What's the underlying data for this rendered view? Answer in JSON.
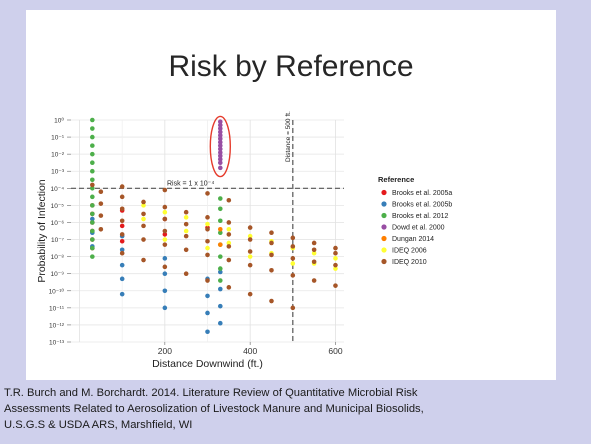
{
  "slide": {
    "title": "Risk by Reference",
    "caption_lines": [
      "T.R. Burch and M. Borchardt.  2014.  Literature Review of Quantitative Microbial Risk",
      "Assessments Related to Aerosolization of Livestock Manure and Municipal Biosolids,",
      "U.S.G.S & USDA ARS, Marshfield, WI"
    ]
  },
  "colors": {
    "frame": "#cfd0ec",
    "highlight_ellipse": "#e53b2c",
    "reference_line": "#555555"
  },
  "chart_data": {
    "type": "scatter",
    "title": "",
    "xlabel": "Distance Downwind (ft.)",
    "ylabel": "Probability of Infection",
    "xlim": [
      -20,
      620
    ],
    "ylim": [
      -13,
      0
    ],
    "y_scale": "log10",
    "x_ticks": [
      200,
      400,
      600
    ],
    "y_ticks": [
      0,
      -1,
      -2,
      -3,
      -4,
      -5,
      -6,
      -7,
      -8,
      -9,
      -10,
      -11,
      -12,
      -13
    ],
    "grid": true,
    "legend_title": "Reference",
    "legend_position": "right",
    "annotations": {
      "risk_line": {
        "label": "Risk = 1 x 10⁻⁴",
        "y": -4
      },
      "distance_line": {
        "label": "Distance = 500 ft.",
        "x": 500
      },
      "highlight": {
        "x": 330,
        "y_from": -0.2,
        "y_to": -2.9
      }
    },
    "series": [
      {
        "name": "Brooks et al. 2005a",
        "color": "#e41a1c",
        "points": [
          [
            30,
            -5
          ],
          [
            30,
            -5.5
          ],
          [
            30,
            -6
          ],
          [
            30,
            -6.5
          ],
          [
            30,
            -7
          ],
          [
            30,
            -7.5
          ],
          [
            100,
            -5.3
          ],
          [
            100,
            -6.2
          ],
          [
            100,
            -7.1
          ],
          [
            200,
            -5.8
          ],
          [
            200,
            -6.7
          ],
          [
            300,
            -6.3
          ]
        ]
      },
      {
        "name": "Brooks et al. 2005b",
        "color": "#377eb8",
        "points": [
          [
            30,
            -5.8
          ],
          [
            30,
            -6.6
          ],
          [
            30,
            -7.4
          ],
          [
            100,
            -6.8
          ],
          [
            100,
            -7.6
          ],
          [
            100,
            -8.5
          ],
          [
            100,
            -9.3
          ],
          [
            100,
            -10.2
          ],
          [
            200,
            -8.1
          ],
          [
            200,
            -9
          ],
          [
            200,
            -10
          ],
          [
            200,
            -11
          ],
          [
            300,
            -9.3
          ],
          [
            300,
            -10.3
          ],
          [
            300,
            -11.3
          ],
          [
            300,
            -12.4
          ],
          [
            330,
            -8.9
          ],
          [
            330,
            -9.9
          ],
          [
            330,
            -10.9
          ],
          [
            330,
            -11.9
          ]
        ]
      },
      {
        "name": "Brooks et al. 2012",
        "color": "#4daf4a",
        "points": [
          [
            30,
            0
          ],
          [
            30,
            -0.5
          ],
          [
            30,
            -1
          ],
          [
            30,
            -1.5
          ],
          [
            30,
            -2
          ],
          [
            30,
            -2.5
          ],
          [
            30,
            -3
          ],
          [
            30,
            -3.5
          ],
          [
            30,
            -4
          ],
          [
            30,
            -4.5
          ],
          [
            30,
            -5
          ],
          [
            30,
            -5.5
          ],
          [
            30,
            -6
          ],
          [
            30,
            -6.5
          ],
          [
            30,
            -7
          ],
          [
            30,
            -7.5
          ],
          [
            30,
            -8
          ],
          [
            330,
            -4.6
          ],
          [
            330,
            -5.2
          ],
          [
            330,
            -5.9
          ],
          [
            330,
            -6.6
          ],
          [
            330,
            -7.3
          ],
          [
            330,
            -8
          ],
          [
            330,
            -8.7
          ],
          [
            330,
            -9.4
          ]
        ]
      },
      {
        "name": "Dowd et al. 2000",
        "color": "#984ea3",
        "points": [
          [
            330,
            -0.1
          ],
          [
            330,
            -0.3
          ],
          [
            330,
            -0.5
          ],
          [
            330,
            -0.7
          ],
          [
            330,
            -0.9
          ],
          [
            330,
            -1.1
          ],
          [
            330,
            -1.3
          ],
          [
            330,
            -1.5
          ],
          [
            330,
            -1.7
          ],
          [
            330,
            -1.9
          ],
          [
            330,
            -2.1
          ],
          [
            330,
            -2.3
          ],
          [
            330,
            -2.5
          ],
          [
            330,
            -2.8
          ]
        ]
      },
      {
        "name": "Dungan 2014",
        "color": "#ff7f00",
        "points": [
          [
            330,
            -6.4
          ],
          [
            330,
            -7.3
          ]
        ]
      },
      {
        "name": "IDEQ 2006",
        "color": "#ffff33",
        "points": [
          [
            150,
            -5
          ],
          [
            200,
            -5.4
          ],
          [
            250,
            -5.7
          ],
          [
            300,
            -6.1
          ],
          [
            350,
            -6.4
          ],
          [
            400,
            -6.8
          ],
          [
            450,
            -7.1
          ],
          [
            500,
            -7.5
          ],
          [
            550,
            -7.8
          ],
          [
            600,
            -8.1
          ],
          [
            150,
            -5.8
          ],
          [
            250,
            -6.5
          ],
          [
            350,
            -7.2
          ],
          [
            450,
            -7.8
          ],
          [
            550,
            -8.4
          ],
          [
            200,
            -7
          ],
          [
            300,
            -7.5
          ],
          [
            400,
            -8
          ],
          [
            500,
            -8.4
          ],
          [
            600,
            -8.7
          ]
        ]
      },
      {
        "name": "IDEQ 2010",
        "color": "#a65628",
        "points": [
          [
            50,
            -4.2
          ],
          [
            100,
            -4.5
          ],
          [
            150,
            -4.8
          ],
          [
            200,
            -5.1
          ],
          [
            250,
            -5.4
          ],
          [
            300,
            -5.7
          ],
          [
            350,
            -6
          ],
          [
            400,
            -6.3
          ],
          [
            450,
            -6.6
          ],
          [
            500,
            -6.9
          ],
          [
            550,
            -7.2
          ],
          [
            600,
            -7.5
          ],
          [
            50,
            -4.9
          ],
          [
            100,
            -5.2
          ],
          [
            150,
            -5.5
          ],
          [
            200,
            -5.8
          ],
          [
            250,
            -6.1
          ],
          [
            300,
            -6.4
          ],
          [
            350,
            -6.7
          ],
          [
            400,
            -7
          ],
          [
            450,
            -7.2
          ],
          [
            500,
            -7.4
          ],
          [
            550,
            -7.6
          ],
          [
            600,
            -7.8
          ],
          [
            50,
            -5.6
          ],
          [
            100,
            -5.9
          ],
          [
            150,
            -6.2
          ],
          [
            200,
            -6.5
          ],
          [
            250,
            -6.8
          ],
          [
            300,
            -7.1
          ],
          [
            350,
            -7.4
          ],
          [
            400,
            -7.7
          ],
          [
            450,
            -7.9
          ],
          [
            500,
            -8.1
          ],
          [
            550,
            -8.3
          ],
          [
            600,
            -8.5
          ],
          [
            50,
            -6.4
          ],
          [
            100,
            -6.7
          ],
          [
            150,
            -7.0
          ],
          [
            200,
            -7.3
          ],
          [
            250,
            -7.6
          ],
          [
            300,
            -7.9
          ],
          [
            350,
            -8.2
          ],
          [
            400,
            -8.5
          ],
          [
            450,
            -8.8
          ],
          [
            500,
            -9.1
          ],
          [
            550,
            -9.4
          ],
          [
            600,
            -9.7
          ],
          [
            100,
            -7.8
          ],
          [
            150,
            -8.2
          ],
          [
            200,
            -8.6
          ],
          [
            250,
            -9.0
          ],
          [
            300,
            -9.4
          ],
          [
            350,
            -9.8
          ],
          [
            400,
            -10.2
          ],
          [
            450,
            -10.6
          ],
          [
            500,
            -11.0
          ],
          [
            30,
            -3.8
          ],
          [
            100,
            -3.9
          ],
          [
            200,
            -4.1
          ],
          [
            300,
            -4.3
          ],
          [
            350,
            -4.7
          ]
        ]
      }
    ]
  }
}
